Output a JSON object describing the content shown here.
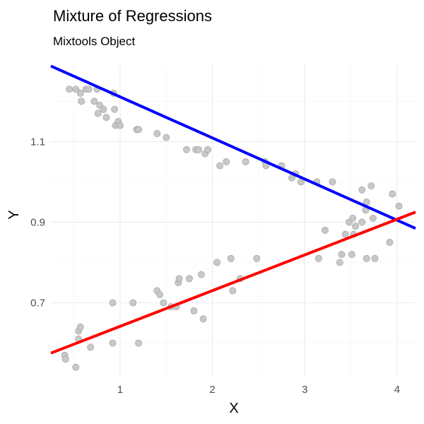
{
  "chart_data": {
    "type": "scatter",
    "title": "Mixture of Regressions",
    "subtitle": "Mixtools Object",
    "xlabel": "X",
    "ylabel": "Y",
    "xlim": [
      0.25,
      4.2
    ],
    "ylim": [
      0.515,
      1.29
    ],
    "x_ticks": [
      1,
      2,
      3,
      4
    ],
    "y_ticks": [
      0.7,
      0.9,
      1.1
    ],
    "x_tick_labels": [
      "1",
      "2",
      "3",
      "4"
    ],
    "y_tick_labels": [
      "0.7",
      "0.9",
      "1.1"
    ],
    "grid": true,
    "points": [
      {
        "x": 0.45,
        "y": 1.23
      },
      {
        "x": 0.52,
        "y": 1.23
      },
      {
        "x": 0.58,
        "y": 1.2
      },
      {
        "x": 0.57,
        "y": 1.22
      },
      {
        "x": 0.63,
        "y": 1.23
      },
      {
        "x": 0.66,
        "y": 1.23
      },
      {
        "x": 0.72,
        "y": 1.2
      },
      {
        "x": 0.75,
        "y": 1.23
      },
      {
        "x": 0.76,
        "y": 1.17
      },
      {
        "x": 0.78,
        "y": 1.19
      },
      {
        "x": 0.82,
        "y": 1.18
      },
      {
        "x": 0.85,
        "y": 1.16
      },
      {
        "x": 0.93,
        "y": 1.22
      },
      {
        "x": 0.94,
        "y": 1.18
      },
      {
        "x": 0.95,
        "y": 1.14
      },
      {
        "x": 0.98,
        "y": 1.15
      },
      {
        "x": 1.0,
        "y": 1.14
      },
      {
        "x": 1.18,
        "y": 1.13
      },
      {
        "x": 1.2,
        "y": 1.13
      },
      {
        "x": 1.4,
        "y": 1.12
      },
      {
        "x": 1.5,
        "y": 1.11
      },
      {
        "x": 1.72,
        "y": 1.08
      },
      {
        "x": 1.82,
        "y": 1.08
      },
      {
        "x": 1.85,
        "y": 1.08
      },
      {
        "x": 1.92,
        "y": 1.07
      },
      {
        "x": 1.95,
        "y": 1.08
      },
      {
        "x": 2.08,
        "y": 1.04
      },
      {
        "x": 2.15,
        "y": 1.05
      },
      {
        "x": 2.36,
        "y": 1.05
      },
      {
        "x": 2.57,
        "y": 1.05
      },
      {
        "x": 2.58,
        "y": 1.04
      },
      {
        "x": 2.75,
        "y": 1.04
      },
      {
        "x": 2.86,
        "y": 1.01
      },
      {
        "x": 2.9,
        "y": 1.02
      },
      {
        "x": 2.96,
        "y": 1.0
      },
      {
        "x": 3.13,
        "y": 1.0
      },
      {
        "x": 3.3,
        "y": 1.0
      },
      {
        "x": 3.62,
        "y": 0.98
      },
      {
        "x": 3.72,
        "y": 0.99
      },
      {
        "x": 3.67,
        "y": 0.95
      },
      {
        "x": 3.95,
        "y": 0.97
      },
      {
        "x": 4.02,
        "y": 0.94
      },
      {
        "x": 0.4,
        "y": 0.57
      },
      {
        "x": 0.41,
        "y": 0.56
      },
      {
        "x": 0.52,
        "y": 0.54
      },
      {
        "x": 0.55,
        "y": 0.61
      },
      {
        "x": 0.55,
        "y": 0.63
      },
      {
        "x": 0.57,
        "y": 0.64
      },
      {
        "x": 0.68,
        "y": 0.59
      },
      {
        "x": 0.92,
        "y": 0.7
      },
      {
        "x": 0.92,
        "y": 0.6
      },
      {
        "x": 1.14,
        "y": 0.7
      },
      {
        "x": 1.2,
        "y": 0.6
      },
      {
        "x": 1.4,
        "y": 0.73
      },
      {
        "x": 1.43,
        "y": 0.72
      },
      {
        "x": 1.47,
        "y": 0.7
      },
      {
        "x": 1.55,
        "y": 0.69
      },
      {
        "x": 1.61,
        "y": 0.69
      },
      {
        "x": 1.63,
        "y": 0.75
      },
      {
        "x": 1.64,
        "y": 0.76
      },
      {
        "x": 1.75,
        "y": 0.76
      },
      {
        "x": 1.8,
        "y": 0.68
      },
      {
        "x": 1.88,
        "y": 0.77
      },
      {
        "x": 1.9,
        "y": 0.66
      },
      {
        "x": 2.05,
        "y": 0.8
      },
      {
        "x": 2.2,
        "y": 0.81
      },
      {
        "x": 2.22,
        "y": 0.73
      },
      {
        "x": 2.3,
        "y": 0.76
      },
      {
        "x": 2.48,
        "y": 0.81
      },
      {
        "x": 3.15,
        "y": 0.81
      },
      {
        "x": 3.22,
        "y": 0.88
      },
      {
        "x": 3.38,
        "y": 0.8
      },
      {
        "x": 3.4,
        "y": 0.82
      },
      {
        "x": 3.44,
        "y": 0.87
      },
      {
        "x": 3.48,
        "y": 0.9
      },
      {
        "x": 3.52,
        "y": 0.91
      },
      {
        "x": 3.51,
        "y": 0.82
      },
      {
        "x": 3.53,
        "y": 0.87
      },
      {
        "x": 3.55,
        "y": 0.89
      },
      {
        "x": 3.62,
        "y": 0.9
      },
      {
        "x": 3.66,
        "y": 0.93
      },
      {
        "x": 3.67,
        "y": 0.81
      },
      {
        "x": 3.74,
        "y": 0.91
      },
      {
        "x": 3.76,
        "y": 0.81
      },
      {
        "x": 3.92,
        "y": 0.85
      }
    ],
    "lines": [
      {
        "color": "#0000ff",
        "intercept": 1.313,
        "slope": -0.102
      },
      {
        "color": "#ff0000",
        "intercept": 0.553,
        "slope": 0.0886
      }
    ]
  }
}
